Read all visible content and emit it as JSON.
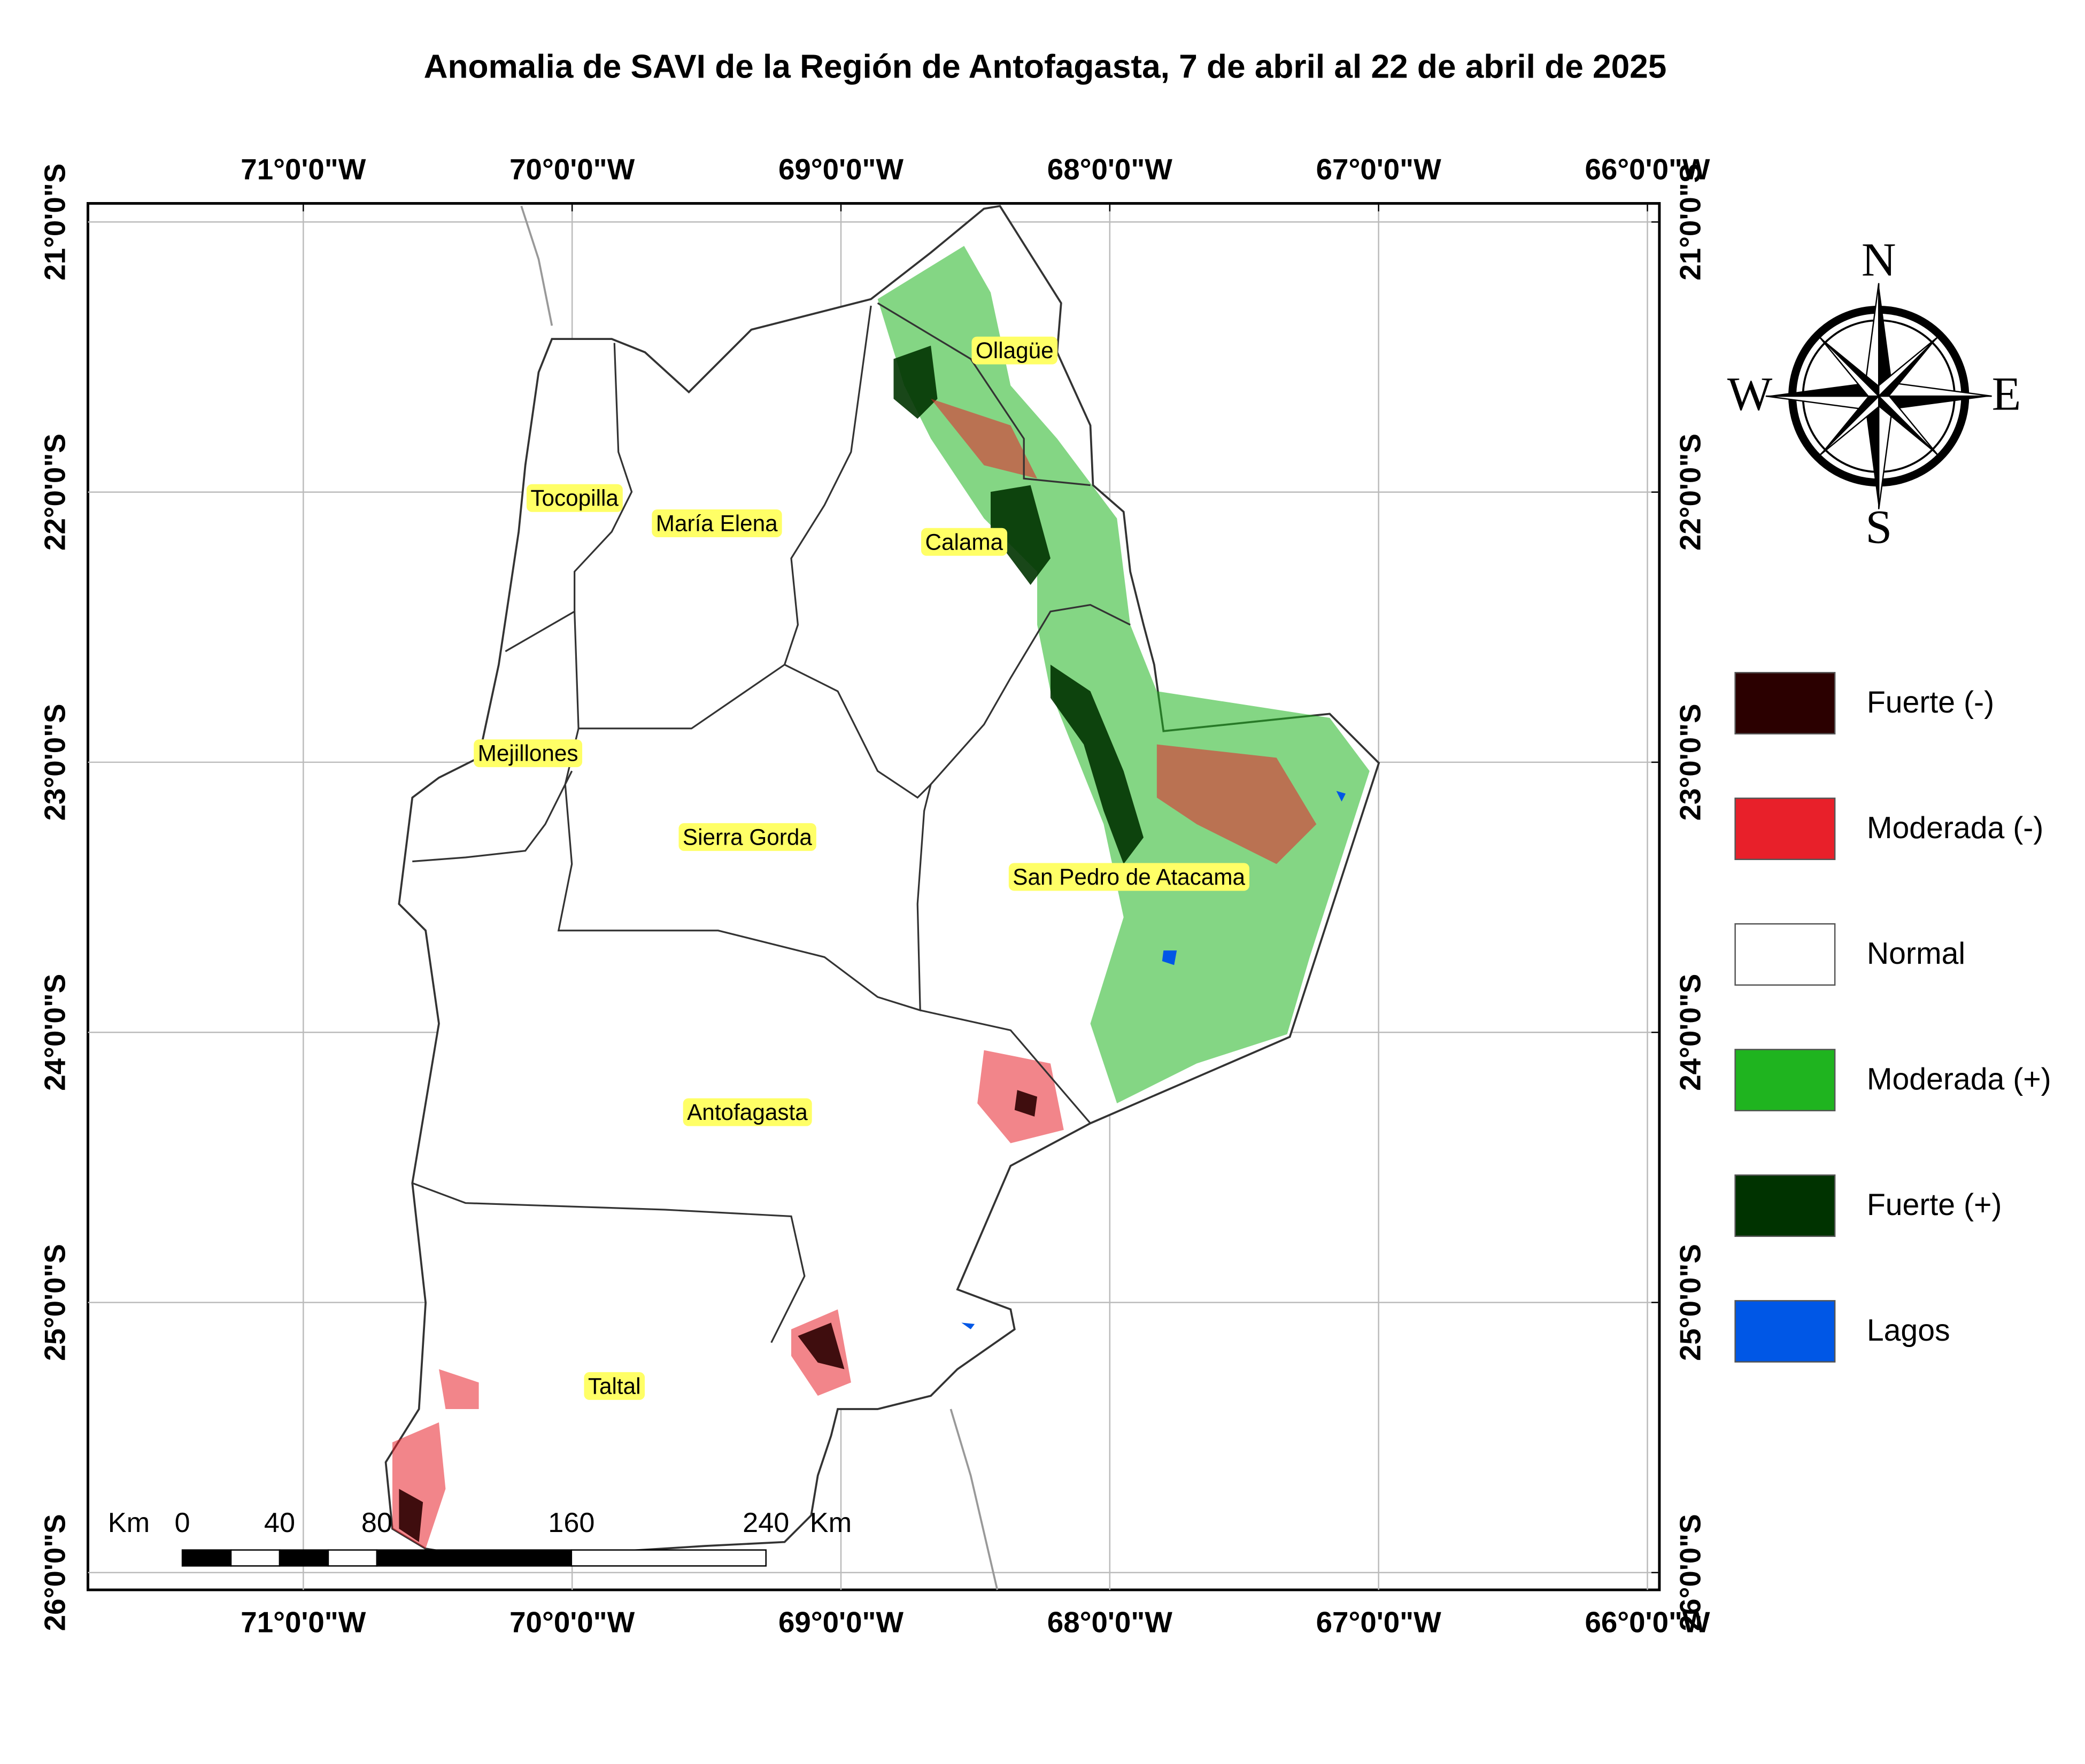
{
  "title": "Anomalia de SAVI de la Región de Antofagasta, 7 de abril al 22 de abril de 2025",
  "map": {
    "lon_ticks": [
      {
        "value": -71,
        "label": "71°0'0\"W"
      },
      {
        "value": -70,
        "label": "70°0'0\"W"
      },
      {
        "value": -69,
        "label": "69°0'0\"W"
      },
      {
        "value": -68,
        "label": "68°0'0\"W"
      },
      {
        "value": -67,
        "label": "67°0'0\"W"
      },
      {
        "value": -66,
        "label": "66°0'0\"W"
      }
    ],
    "lat_ticks": [
      {
        "value": -21,
        "label": "21°0'0\"S"
      },
      {
        "value": -22,
        "label": "22°0'0\"S"
      },
      {
        "value": -23,
        "label": "23°0'0\"S"
      },
      {
        "value": -24,
        "label": "24°0'0\"S"
      },
      {
        "value": -25,
        "label": "25°0'0\"S"
      },
      {
        "value": -26,
        "label": "26°0'0\"S"
      }
    ],
    "places": [
      "Ollagüe",
      "Tocopilla",
      "María Elena",
      "Calama",
      "Mejillones",
      "Sierra Gorda",
      "San Pedro de Atacama",
      "Antofagasta",
      "Taltal"
    ],
    "legend": [
      {
        "label": "Fuerte (-)",
        "color": "#2b0000"
      },
      {
        "label": "Moderada (-)",
        "color": "#e8202a"
      },
      {
        "label": "Normal",
        "color": "#ffffff"
      },
      {
        "label": "Moderada (+)",
        "color": "#1fb41f"
      },
      {
        "label": "Fuerte (+)",
        "color": "#003300"
      },
      {
        "label": "Lagos",
        "color": "#0057e6"
      }
    ],
    "scale_bar": {
      "unit": "Km",
      "ticks": [
        0,
        40,
        80,
        160,
        240
      ]
    },
    "compass": {
      "north": "N",
      "south": "S",
      "east": "E",
      "west": "W"
    }
  }
}
